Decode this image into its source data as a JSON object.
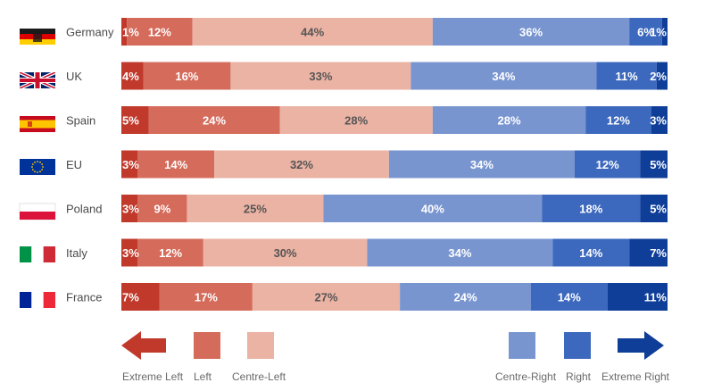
{
  "chart_data": {
    "type": "bar",
    "orientation": "horizontal",
    "stacked": true,
    "normalized_percent": true,
    "categories": [
      "Germany",
      "UK",
      "Spain",
      "EU",
      "Poland",
      "Italy",
      "France"
    ],
    "series": [
      {
        "name": "Extreme Left",
        "color": "#c0392b",
        "values": [
          1,
          4,
          5,
          3,
          3,
          3,
          7
        ]
      },
      {
        "name": "Left",
        "color": "#d56b5b",
        "values": [
          12,
          16,
          24,
          14,
          9,
          12,
          17
        ]
      },
      {
        "name": "Centre-Left",
        "color": "#ebb3a4",
        "values": [
          44,
          33,
          28,
          32,
          25,
          30,
          27
        ]
      },
      {
        "name": "Centre-Right",
        "color": "#7995d0",
        "values": [
          36,
          34,
          28,
          34,
          40,
          34,
          24
        ]
      },
      {
        "name": "Right",
        "color": "#3c68bd",
        "values": [
          6,
          11,
          12,
          12,
          18,
          14,
          14
        ]
      },
      {
        "name": "Extreme Right",
        "color": "#0f3e98",
        "values": [
          1,
          2,
          3,
          5,
          5,
          7,
          11
        ]
      }
    ],
    "data_labels": [
      [
        "1%",
        "4%",
        "5%",
        "3%",
        "3%",
        "3%",
        "7%"
      ],
      [
        "12%",
        "16%",
        "24%",
        "14%",
        "9%",
        "12%",
        "17%"
      ],
      [
        "44%",
        "33%",
        "28%",
        "32%",
        "25%",
        "30%",
        "27%"
      ],
      [
        "36%",
        "34%",
        "28%",
        "34%",
        "40%",
        "34%",
        "24%"
      ],
      [
        "6%",
        "11%",
        "12%",
        "12%",
        "18%",
        "14%",
        "14%"
      ],
      [
        "1%",
        "2%",
        "3%",
        "5%",
        "5%",
        "7%",
        "11%"
      ]
    ],
    "label_colors": [
      "#ffffff",
      "#ffffff",
      "#555555",
      "#ffffff",
      "#ffffff",
      "#ffffff"
    ],
    "flags": [
      "germany-flag-icon",
      "uk-flag-icon",
      "spain-flag-icon",
      "eu-flag-icon",
      "poland-flag-icon",
      "italy-flag-icon",
      "france-flag-icon"
    ],
    "legend": {
      "placement": "bottom",
      "items": [
        {
          "label": "Extreme Left",
          "shape": "arrow-left",
          "color": "#c0392b"
        },
        {
          "label": "Left",
          "shape": "square",
          "color": "#d56b5b"
        },
        {
          "label": "Centre-Left",
          "shape": "square",
          "color": "#ebb3a4"
        },
        {
          "label": "Centre-Right",
          "shape": "square",
          "color": "#7995d0"
        },
        {
          "label": "Right",
          "shape": "square",
          "color": "#3c68bd"
        },
        {
          "label": "Extreme Right",
          "shape": "arrow-right",
          "color": "#0f3e98"
        }
      ]
    },
    "grid": false,
    "title": "",
    "xlabel": "",
    "ylabel": ""
  }
}
